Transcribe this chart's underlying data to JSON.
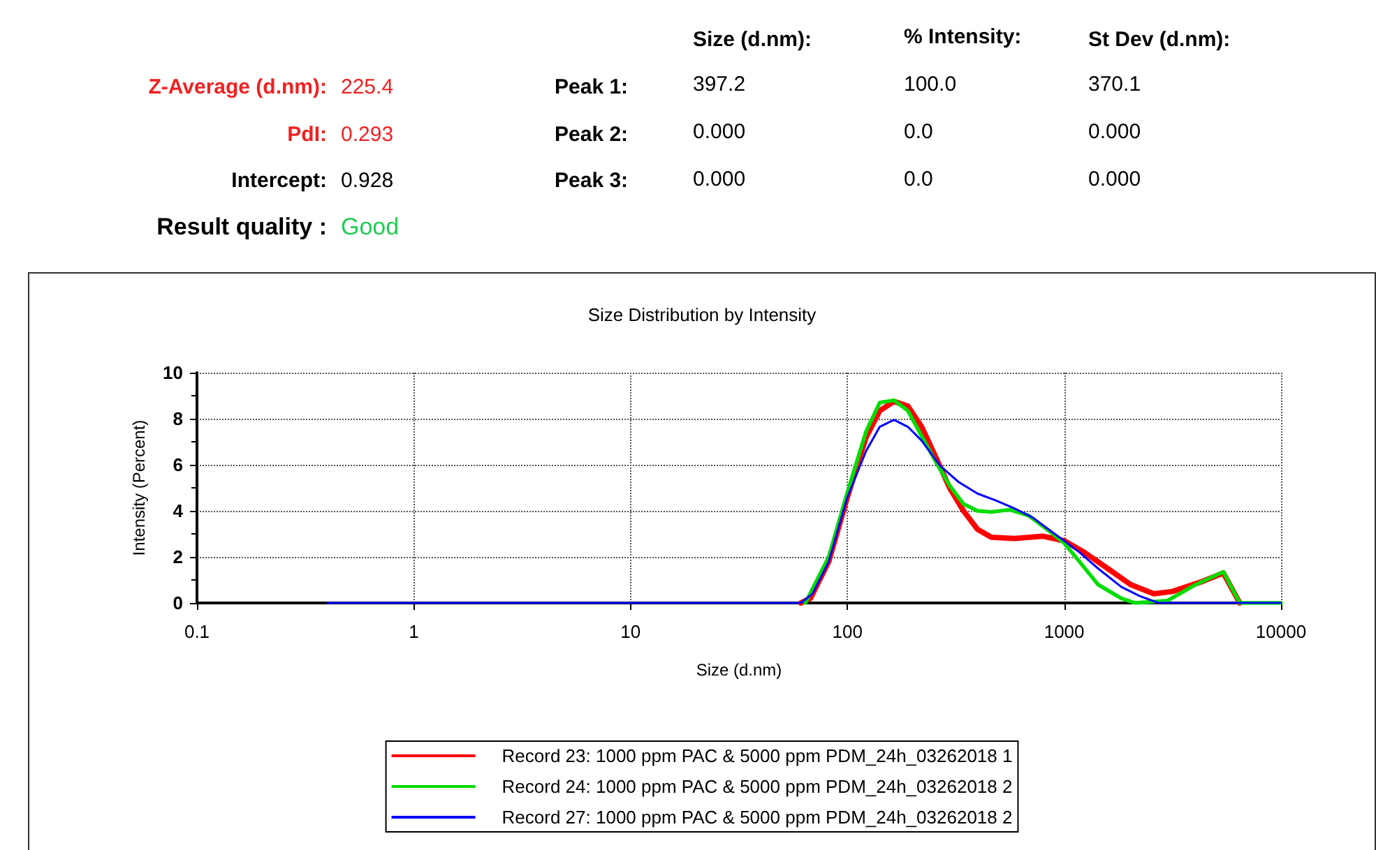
{
  "chart_data": [
    {
      "type": "other",
      "annotations": [
        "Z-Average (d.nm):",
        "225.4",
        "PdI:",
        "0.293",
        "Intercept:",
        "0.928",
        "Result quality :",
        "Good",
        "Size (d.nm):",
        "% Intensity:",
        "St Dev (d.nm):",
        "Peak 1:",
        "397.2",
        "100.0",
        "370.1",
        "Peak 2:",
        "0.000",
        "0.0",
        "0.000",
        "Peak 3:",
        "0.000",
        "0.0",
        "0.000"
      ]
    },
    {
      "type": "line",
      "title": "Size Distribution by Intensity",
      "xlabel": "Size (d.nm)",
      "ylabel": "Intensity (Percent)",
      "log": "x",
      "xlim": [
        0.1,
        10000
      ],
      "xticks": [
        0.1,
        1,
        10,
        100,
        1000,
        10000
      ],
      "ylim": [
        0,
        10
      ],
      "yticks": [
        0,
        2,
        4,
        6,
        8,
        10
      ],
      "grid": true,
      "legend": "bottom",
      "line_style": "solid",
      "series": [
        {
          "name": "Record 23: 1000 ppm PAC & 5000 ppm PDM_24h_03262018 1",
          "color": "#ff0000",
          "x": [
            61,
            67.5,
            82,
            100,
            122,
            141,
            164,
            190,
            220,
            255,
            296,
            343,
            398,
            461,
            590,
            794,
            1000,
            1236,
            1585,
            2024,
            2590,
            3160,
            4240,
            5420,
            6450
          ],
          "values": [
            0,
            0.2,
            1.8,
            4.6,
            7.2,
            8.35,
            8.75,
            8.55,
            7.65,
            6.35,
            5.0,
            4.0,
            3.2,
            2.85,
            2.8,
            2.9,
            2.7,
            2.2,
            1.5,
            0.8,
            0.4,
            0.5,
            0.9,
            1.3,
            0
          ]
        },
        {
          "name": "Record 24: 1000 ppm PAC & 5000 ppm PDM_24h_03262018 2",
          "color": "#00dd00",
          "x": [
            64,
            82,
            100,
            122,
            141,
            164,
            190,
            220,
            255,
            296,
            343,
            398,
            461,
            561,
            684,
            832,
            1000,
            1175,
            1432,
            1832,
            2120,
            3000,
            4040,
            5420,
            6450,
            10000
          ],
          "values": [
            0,
            2.0,
            4.8,
            7.45,
            8.7,
            8.8,
            8.35,
            7.25,
            6.15,
            5.1,
            4.3,
            4.0,
            3.95,
            4.05,
            3.8,
            3.2,
            2.6,
            1.8,
            0.8,
            0.2,
            0,
            0.1,
            0.8,
            1.35,
            0,
            0
          ]
        },
        {
          "name": "Record 27: 1000 ppm PAC & 5000 ppm PDM_24h_03262018 2",
          "color": "#0000ff",
          "x": [
            0.4,
            1,
            10,
            61,
            69,
            82,
            100,
            122,
            141,
            164,
            190,
            220,
            268,
            326,
            398,
            484,
            590,
            718,
            874,
            1000,
            1175,
            1432,
            1832,
            2230,
            2720,
            10000
          ],
          "values": [
            0,
            0,
            0,
            0,
            0.4,
            1.8,
            4.6,
            6.6,
            7.65,
            7.95,
            7.65,
            7.05,
            5.95,
            5.25,
            4.75,
            4.45,
            4.1,
            3.7,
            3.1,
            2.7,
            2.2,
            1.5,
            0.7,
            0.3,
            0,
            0
          ]
        }
      ]
    }
  ]
}
